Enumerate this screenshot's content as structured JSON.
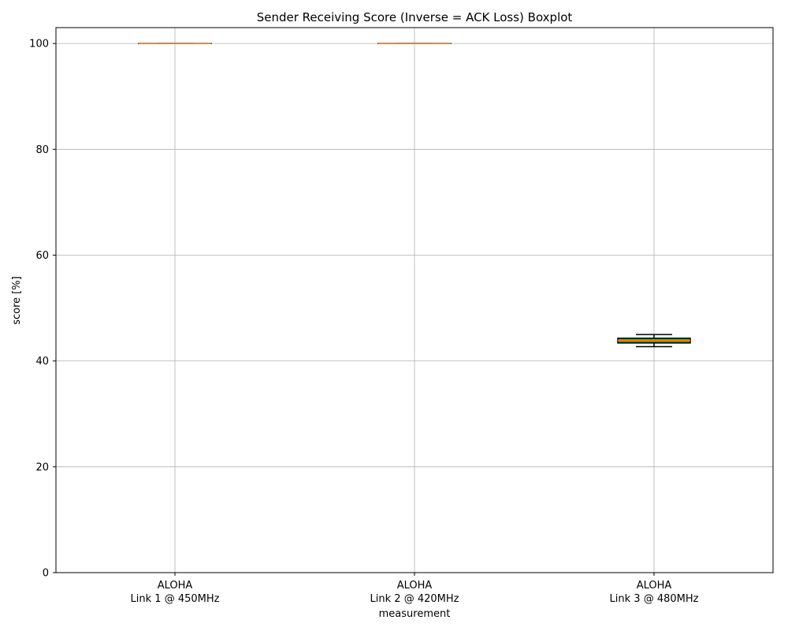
{
  "chart_data": {
    "type": "boxplot",
    "title": "Sender Receiving Score (Inverse = ACK Loss) Boxplot",
    "xlabel": "measurement",
    "ylabel": "score [%]",
    "ylim": [
      0,
      103
    ],
    "yticks": [
      0,
      20,
      40,
      60,
      80,
      100
    ],
    "grid": true,
    "categories": [
      [
        "ALOHA",
        "Link 1 @ 450MHz"
      ],
      [
        "ALOHA",
        "Link 2 @ 420MHz"
      ],
      [
        "ALOHA",
        "Link 3 @ 480MHz"
      ]
    ],
    "boxes": [
      {
        "whisker_low": 100,
        "q1": 100,
        "median": 100,
        "q3": 100,
        "whisker_high": 100
      },
      {
        "whisker_low": 100,
        "q1": 100,
        "median": 100,
        "q3": 100,
        "whisker_high": 100
      },
      {
        "whisker_low": 42.7,
        "q1": 43.4,
        "median": 43.9,
        "q3": 44.3,
        "whisker_high": 45.0
      }
    ],
    "colors": {
      "median": "#ff7f0e",
      "box_fill": "#2ca02c",
      "box_edge": "#000000",
      "grid": "#b0b0b0"
    }
  }
}
